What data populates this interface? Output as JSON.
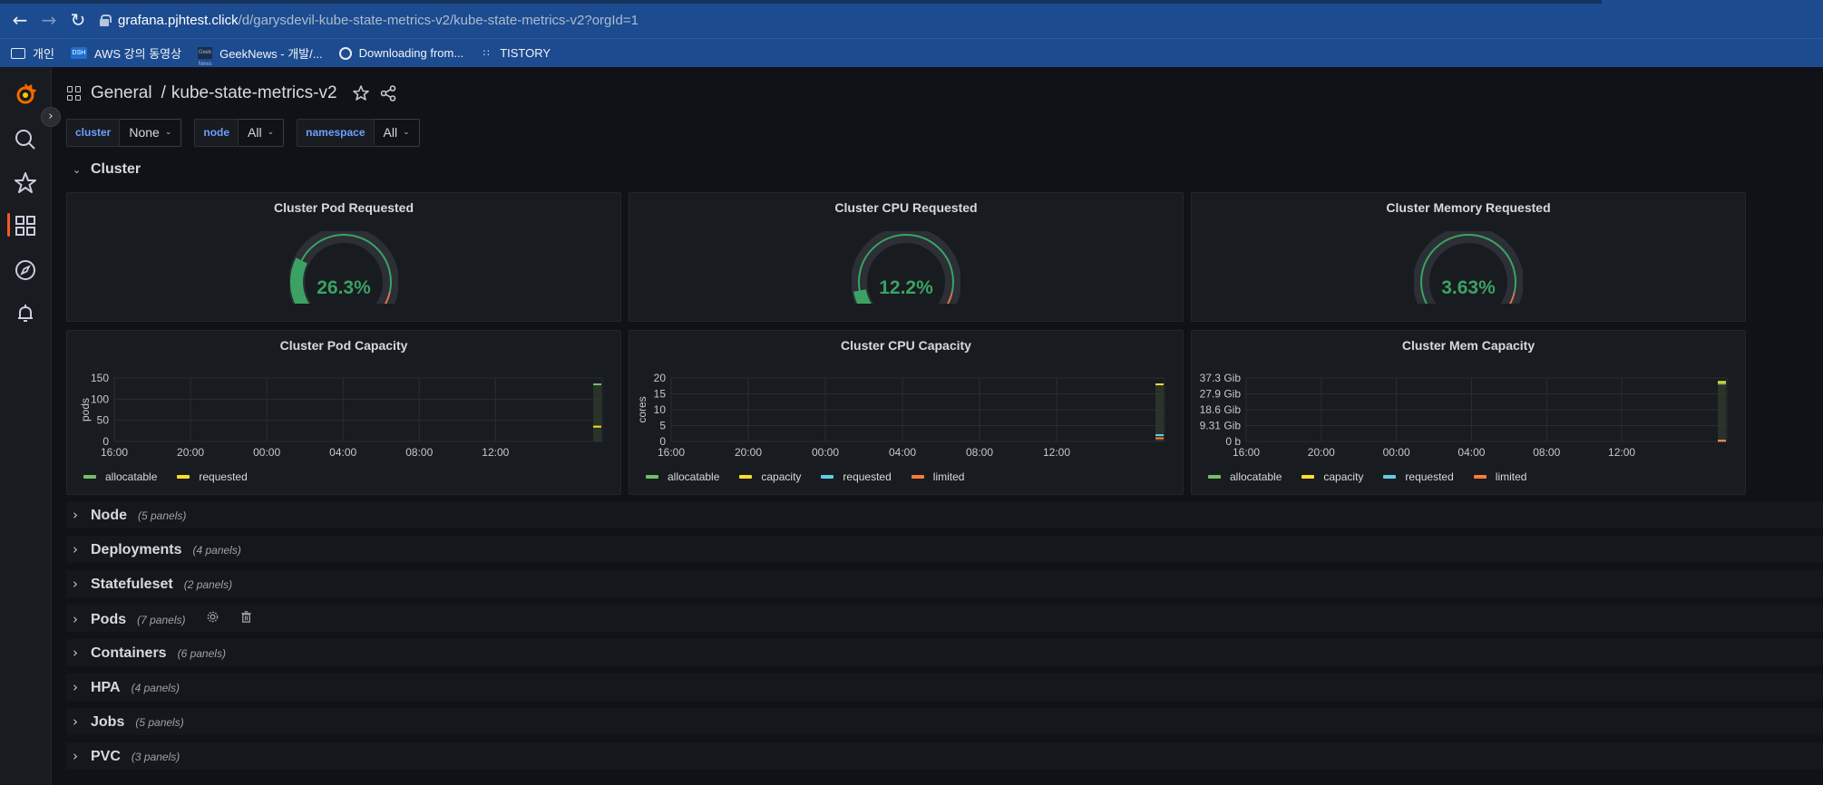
{
  "browser": {
    "url_host": "grafana.pjhtest.click",
    "url_path": "/d/garysdevil-kube-state-metrics-v2/kube-state-metrics-v2?orgId=1",
    "bookmarks": [
      {
        "icon": "folder-icon",
        "label": "개인"
      },
      {
        "icon": "dsh-icon",
        "badge": "DSH",
        "label": "AWS 강의 동영상"
      },
      {
        "icon": "geeknews-icon",
        "badge": "Geek News",
        "label": "GeekNews - 개발/..."
      },
      {
        "icon": "globe-icon",
        "label": "Downloading from..."
      },
      {
        "icon": "tistory-icon",
        "label": "TISTORY"
      }
    ]
  },
  "header": {
    "folder": "General",
    "separator": "/",
    "title": "kube-state-metrics-v2"
  },
  "variables": [
    {
      "label": "cluster",
      "value": "None"
    },
    {
      "label": "node",
      "value": "All"
    },
    {
      "label": "namespace",
      "value": "All"
    }
  ],
  "cluster_row": {
    "title": "Cluster"
  },
  "gauges": [
    {
      "title": "Cluster Pod Requested",
      "value": "26.3%",
      "fraction": 0.263
    },
    {
      "title": "Cluster CPU Requested",
      "value": "12.2%",
      "fraction": 0.122
    },
    {
      "title": "Cluster Memory Requested",
      "value": "3.63%",
      "fraction": 0.0363
    }
  ],
  "colors": {
    "accent": "#f05a28",
    "gauge_green": "#3ba264",
    "gauge_red": "#e0754b",
    "allocatable": "#73bf69",
    "capacity": "#fade2a",
    "requested": "#5ecee8",
    "limited": "#ff7a39",
    "variable_label": "#6e9fff"
  },
  "chart_data": [
    {
      "type": "line",
      "title": "Cluster Pod Capacity",
      "ylabel": "pods",
      "y_ticks": [
        "0",
        "50",
        "100",
        "150"
      ],
      "ylim": [
        0,
        150
      ],
      "x_ticks": [
        "16:00",
        "20:00",
        "00:00",
        "04:00",
        "08:00",
        "12:00"
      ],
      "grid": true,
      "legend_position": "bottom",
      "series": [
        {
          "name": "allocatable",
          "color": "#73bf69",
          "last_value": 135
        },
        {
          "name": "requested",
          "color": "#fade2a",
          "last_value": 35
        }
      ]
    },
    {
      "type": "line",
      "title": "Cluster CPU Capacity",
      "ylabel": "cores",
      "y_ticks": [
        "0",
        "5",
        "10",
        "15",
        "20"
      ],
      "ylim": [
        0,
        20
      ],
      "x_ticks": [
        "16:00",
        "20:00",
        "00:00",
        "04:00",
        "08:00",
        "12:00"
      ],
      "grid": true,
      "legend_position": "bottom",
      "series": [
        {
          "name": "allocatable",
          "color": "#73bf69",
          "last_value": 18
        },
        {
          "name": "capacity",
          "color": "#fade2a",
          "last_value": 18
        },
        {
          "name": "requested",
          "color": "#5ecee8",
          "last_value": 2
        },
        {
          "name": "limited",
          "color": "#ff7a39",
          "last_value": 1
        }
      ]
    },
    {
      "type": "line",
      "title": "Cluster Mem Capacity",
      "ylabel": "",
      "y_ticks": [
        "0 b",
        "9.31 Gib",
        "18.6 Gib",
        "27.9 Gib",
        "37.3 Gib"
      ],
      "ylim": [
        0,
        37.3
      ],
      "x_ticks": [
        "16:00",
        "20:00",
        "00:00",
        "04:00",
        "08:00",
        "12:00"
      ],
      "grid": true,
      "legend_position": "bottom",
      "series": [
        {
          "name": "allocatable",
          "color": "#73bf69",
          "last_value": 34
        },
        {
          "name": "capacity",
          "color": "#fade2a",
          "last_value": 35
        },
        {
          "name": "requested",
          "color": "#5ecee8",
          "last_value": 0.5
        },
        {
          "name": "limited",
          "color": "#ff7a39",
          "last_value": 0.3
        }
      ]
    }
  ],
  "collapsed_rows": [
    {
      "title": "Node",
      "count": "(5 panels)"
    },
    {
      "title": "Deployments",
      "count": "(4 panels)"
    },
    {
      "title": "Statefuleset",
      "count": "(2 panels)"
    },
    {
      "title": "Pods",
      "count": "(7 panels)"
    },
    {
      "title": "Containers",
      "count": "(6 panels)"
    },
    {
      "title": "HPA",
      "count": "(4 panels)"
    },
    {
      "title": "Jobs",
      "count": "(5 panels)"
    },
    {
      "title": "PVC",
      "count": "(3 panels)"
    }
  ]
}
